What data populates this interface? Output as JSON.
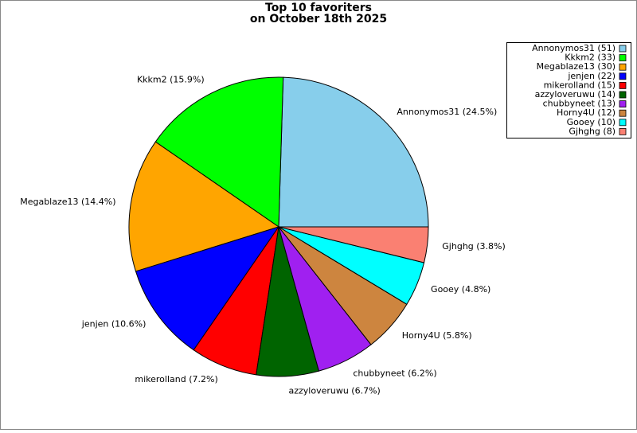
{
  "chart_data": {
    "type": "pie",
    "title": [
      "Top 10 favoriters",
      "on October 18th 2025"
    ],
    "categories": [
      "Annonymos31",
      "Kkkm2",
      "Megablaze13",
      "jenjen",
      "mikerolland",
      "azzyloveruwu",
      "chubbyneet",
      "Horny4U",
      "Gooey",
      "Gjhghg"
    ],
    "values": [
      51,
      33,
      30,
      22,
      15,
      14,
      13,
      12,
      10,
      8
    ],
    "value_labels": [
      "Annonymos31 (51)",
      "Kkkm2 (33)",
      "Megablaze13 (30)",
      "jenjen (22)",
      "mikerolland (15)",
      "azzyloveruwu (14)",
      "chubbyneet (13)",
      "Horny4U (12)",
      "Gooey (10)",
      "Gjhghg (8)"
    ],
    "slice_labels": [
      "Annonymos31 (24.5%)",
      "Kkkm2 (15.9%)",
      "Megablaze13 (14.4%)",
      "jenjen (10.6%)",
      "mikerolland (7.2%)",
      "azzyloveruwu (6.7%)",
      "chubbyneet (6.2%)",
      "Horny4U (5.8%)",
      "Gooey (4.8%)",
      "Gjhghg (3.8%)"
    ],
    "colors": [
      "#87ceeb",
      "#00ff00",
      "#ffa500",
      "#0000ff",
      "#ff0000",
      "#006400",
      "#a020f0",
      "#cd853f",
      "#00ffff",
      "#fa8072"
    ],
    "legend": "upper right"
  }
}
